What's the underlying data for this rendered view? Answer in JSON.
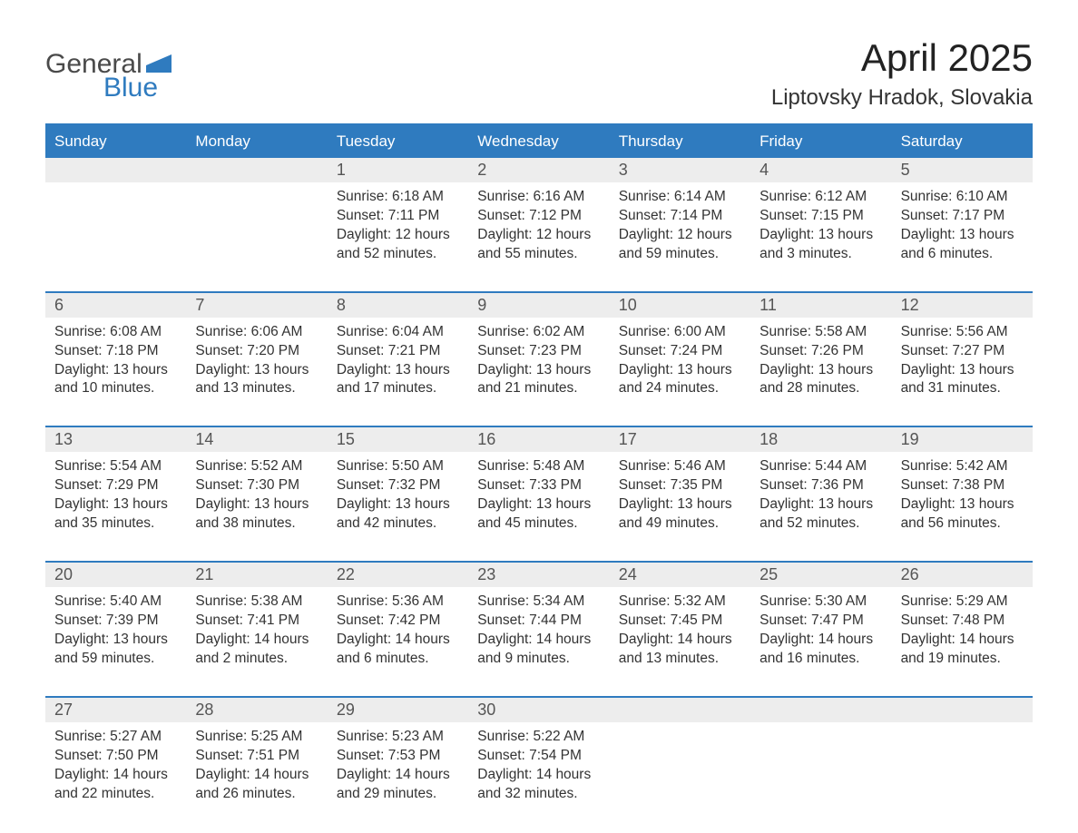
{
  "logo": {
    "text1": "General",
    "text2": "Blue",
    "color1": "#4a4a4a",
    "color2": "#2f7bbf"
  },
  "title": "April 2025",
  "location": "Liptovsky Hradok, Slovakia",
  "colors": {
    "header_bg": "#2f7bbf",
    "header_text": "#ffffff",
    "daynum_bg": "#ededed",
    "daynum_text": "#555555",
    "body_text": "#333333",
    "rule": "#2f7bbf",
    "background": "#ffffff"
  },
  "typography": {
    "title_fontsize": 42,
    "location_fontsize": 24,
    "weekday_fontsize": 17,
    "daynum_fontsize": 18,
    "cell_fontsize": 15.5,
    "logo_fontsize": 30
  },
  "weekdays": [
    "Sunday",
    "Monday",
    "Tuesday",
    "Wednesday",
    "Thursday",
    "Friday",
    "Saturday"
  ],
  "labels": {
    "sunrise": "Sunrise:",
    "sunset": "Sunset:",
    "daylight": "Daylight:"
  },
  "weeks": [
    [
      null,
      null,
      {
        "n": "1",
        "sunrise": "6:18 AM",
        "sunset": "7:11 PM",
        "dl1": "12 hours",
        "dl2": "and 52 minutes."
      },
      {
        "n": "2",
        "sunrise": "6:16 AM",
        "sunset": "7:12 PM",
        "dl1": "12 hours",
        "dl2": "and 55 minutes."
      },
      {
        "n": "3",
        "sunrise": "6:14 AM",
        "sunset": "7:14 PM",
        "dl1": "12 hours",
        "dl2": "and 59 minutes."
      },
      {
        "n": "4",
        "sunrise": "6:12 AM",
        "sunset": "7:15 PM",
        "dl1": "13 hours",
        "dl2": "and 3 minutes."
      },
      {
        "n": "5",
        "sunrise": "6:10 AM",
        "sunset": "7:17 PM",
        "dl1": "13 hours",
        "dl2": "and 6 minutes."
      }
    ],
    [
      {
        "n": "6",
        "sunrise": "6:08 AM",
        "sunset": "7:18 PM",
        "dl1": "13 hours",
        "dl2": "and 10 minutes."
      },
      {
        "n": "7",
        "sunrise": "6:06 AM",
        "sunset": "7:20 PM",
        "dl1": "13 hours",
        "dl2": "and 13 minutes."
      },
      {
        "n": "8",
        "sunrise": "6:04 AM",
        "sunset": "7:21 PM",
        "dl1": "13 hours",
        "dl2": "and 17 minutes."
      },
      {
        "n": "9",
        "sunrise": "6:02 AM",
        "sunset": "7:23 PM",
        "dl1": "13 hours",
        "dl2": "and 21 minutes."
      },
      {
        "n": "10",
        "sunrise": "6:00 AM",
        "sunset": "7:24 PM",
        "dl1": "13 hours",
        "dl2": "and 24 minutes."
      },
      {
        "n": "11",
        "sunrise": "5:58 AM",
        "sunset": "7:26 PM",
        "dl1": "13 hours",
        "dl2": "and 28 minutes."
      },
      {
        "n": "12",
        "sunrise": "5:56 AM",
        "sunset": "7:27 PM",
        "dl1": "13 hours",
        "dl2": "and 31 minutes."
      }
    ],
    [
      {
        "n": "13",
        "sunrise": "5:54 AM",
        "sunset": "7:29 PM",
        "dl1": "13 hours",
        "dl2": "and 35 minutes."
      },
      {
        "n": "14",
        "sunrise": "5:52 AM",
        "sunset": "7:30 PM",
        "dl1": "13 hours",
        "dl2": "and 38 minutes."
      },
      {
        "n": "15",
        "sunrise": "5:50 AM",
        "sunset": "7:32 PM",
        "dl1": "13 hours",
        "dl2": "and 42 minutes."
      },
      {
        "n": "16",
        "sunrise": "5:48 AM",
        "sunset": "7:33 PM",
        "dl1": "13 hours",
        "dl2": "and 45 minutes."
      },
      {
        "n": "17",
        "sunrise": "5:46 AM",
        "sunset": "7:35 PM",
        "dl1": "13 hours",
        "dl2": "and 49 minutes."
      },
      {
        "n": "18",
        "sunrise": "5:44 AM",
        "sunset": "7:36 PM",
        "dl1": "13 hours",
        "dl2": "and 52 minutes."
      },
      {
        "n": "19",
        "sunrise": "5:42 AM",
        "sunset": "7:38 PM",
        "dl1": "13 hours",
        "dl2": "and 56 minutes."
      }
    ],
    [
      {
        "n": "20",
        "sunrise": "5:40 AM",
        "sunset": "7:39 PM",
        "dl1": "13 hours",
        "dl2": "and 59 minutes."
      },
      {
        "n": "21",
        "sunrise": "5:38 AM",
        "sunset": "7:41 PM",
        "dl1": "14 hours",
        "dl2": "and 2 minutes."
      },
      {
        "n": "22",
        "sunrise": "5:36 AM",
        "sunset": "7:42 PM",
        "dl1": "14 hours",
        "dl2": "and 6 minutes."
      },
      {
        "n": "23",
        "sunrise": "5:34 AM",
        "sunset": "7:44 PM",
        "dl1": "14 hours",
        "dl2": "and 9 minutes."
      },
      {
        "n": "24",
        "sunrise": "5:32 AM",
        "sunset": "7:45 PM",
        "dl1": "14 hours",
        "dl2": "and 13 minutes."
      },
      {
        "n": "25",
        "sunrise": "5:30 AM",
        "sunset": "7:47 PM",
        "dl1": "14 hours",
        "dl2": "and 16 minutes."
      },
      {
        "n": "26",
        "sunrise": "5:29 AM",
        "sunset": "7:48 PM",
        "dl1": "14 hours",
        "dl2": "and 19 minutes."
      }
    ],
    [
      {
        "n": "27",
        "sunrise": "5:27 AM",
        "sunset": "7:50 PM",
        "dl1": "14 hours",
        "dl2": "and 22 minutes."
      },
      {
        "n": "28",
        "sunrise": "5:25 AM",
        "sunset": "7:51 PM",
        "dl1": "14 hours",
        "dl2": "and 26 minutes."
      },
      {
        "n": "29",
        "sunrise": "5:23 AM",
        "sunset": "7:53 PM",
        "dl1": "14 hours",
        "dl2": "and 29 minutes."
      },
      {
        "n": "30",
        "sunrise": "5:22 AM",
        "sunset": "7:54 PM",
        "dl1": "14 hours",
        "dl2": "and 32 minutes."
      },
      null,
      null,
      null
    ]
  ]
}
